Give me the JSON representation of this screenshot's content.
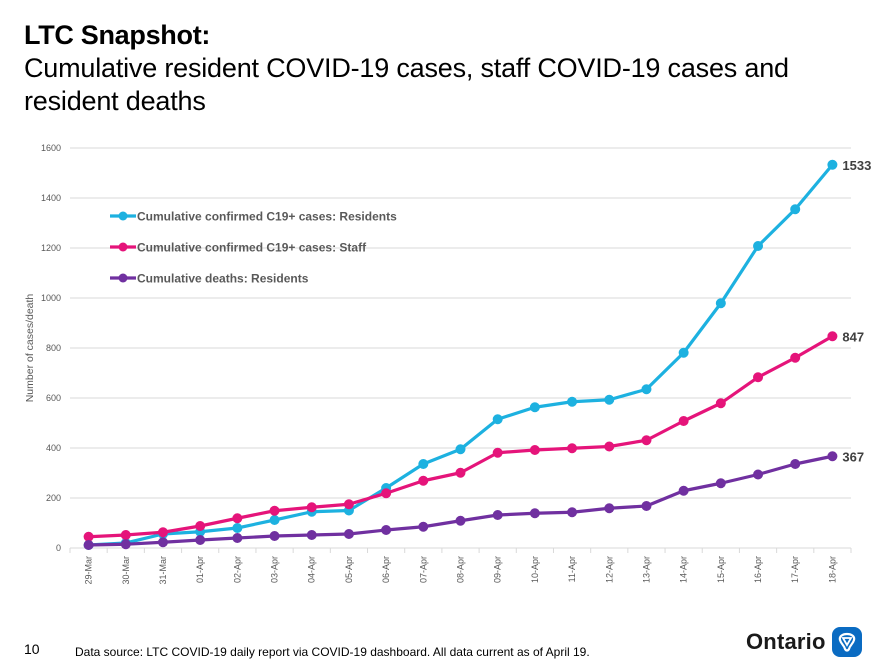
{
  "header": {
    "title_bold": "LTC Snapshot:",
    "title_sub": "Cumulative resident COVID-19 cases, staff COVID-19 cases and resident deaths"
  },
  "footer": {
    "page_number": "10",
    "source": "Data source: LTC COVID-19 daily report via COVID-19 dashboard. All data current as of April 19.",
    "logo_text": "Ontario",
    "logo_icon": "trillium-icon"
  },
  "chart_data": {
    "type": "line",
    "title": "",
    "xlabel": "",
    "ylabel": "Number of cases/death",
    "ylim": [
      0,
      1600
    ],
    "yticks": [
      0,
      200,
      400,
      600,
      800,
      1000,
      1200,
      1400,
      1600
    ],
    "grid": true,
    "legend_position": "top-left",
    "categories": [
      "29-Mar",
      "30-Mar",
      "31-Mar",
      "01-Apr",
      "02-Apr",
      "03-Apr",
      "04-Apr",
      "05-Apr",
      "06-Apr",
      "07-Apr",
      "08-Apr",
      "09-Apr",
      "10-Apr",
      "11-Apr",
      "12-Apr",
      "13-Apr",
      "14-Apr",
      "15-Apr",
      "16-Apr",
      "17-Apr",
      "18-Apr"
    ],
    "series": [
      {
        "name": "Cumulative confirmed C19+ cases: Residents",
        "color": "#1DB1E0",
        "values": [
          12,
          20,
          56,
          65,
          80,
          112,
          145,
          150,
          240,
          336,
          395,
          515,
          563,
          585,
          593,
          635,
          781,
          979,
          1208,
          1355,
          1533
        ],
        "end_label": "1533"
      },
      {
        "name": "Cumulative confirmed C19+ cases: Staff",
        "color": "#E5147A",
        "values": [
          45,
          52,
          63,
          88,
          119,
          149,
          163,
          175,
          219,
          269,
          301,
          381,
          392,
          399,
          406,
          431,
          508,
          579,
          683,
          761,
          847
        ],
        "end_label": "847"
      },
      {
        "name": "Cumulative deaths: Residents",
        "color": "#7030A0",
        "values": [
          12,
          15,
          23,
          32,
          40,
          48,
          52,
          56,
          72,
          85,
          109,
          132,
          139,
          143,
          159,
          168,
          229,
          259,
          294,
          336,
          367
        ],
        "end_label": "367"
      }
    ]
  }
}
